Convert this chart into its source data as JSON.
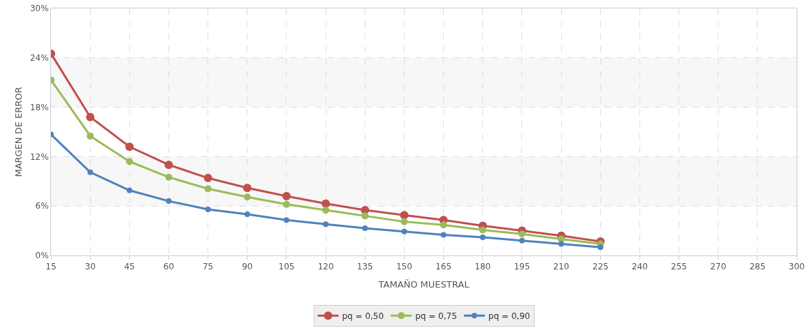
{
  "chart_data": {
    "type": "line",
    "xlabel": "TAMAÑO MUESTRAL",
    "ylabel": "MARGEN DE ERROR",
    "x": [
      15,
      30,
      45,
      60,
      75,
      90,
      105,
      120,
      135,
      150,
      165,
      180,
      195,
      210,
      225
    ],
    "series": [
      {
        "name": "pq = 0,50",
        "color": "#c0504d",
        "values": [
          24.5,
          16.8,
          13.2,
          11.0,
          9.4,
          8.2,
          7.2,
          6.3,
          5.5,
          4.9,
          4.3,
          3.6,
          3.0,
          2.4,
          1.7
        ]
      },
      {
        "name": "pq = 0,75",
        "color": "#9bbb59",
        "values": [
          21.3,
          14.5,
          11.4,
          9.5,
          8.1,
          7.1,
          6.2,
          5.5,
          4.8,
          4.1,
          3.7,
          3.1,
          2.6,
          2.0,
          1.4
        ]
      },
      {
        "name": "pq = 0,90",
        "color": "#4f81bd",
        "values": [
          14.7,
          10.1,
          7.9,
          6.6,
          5.6,
          5.0,
          4.3,
          3.8,
          3.3,
          2.9,
          2.5,
          2.2,
          1.8,
          1.4,
          1.0
        ]
      }
    ],
    "xlim": [
      15,
      300
    ],
    "xticks": [
      15,
      30,
      45,
      60,
      75,
      90,
      105,
      120,
      135,
      150,
      165,
      180,
      195,
      210,
      225,
      240,
      255,
      270,
      285,
      300
    ],
    "ylim": [
      0,
      30
    ],
    "yticks": [
      {
        "value": 0,
        "label": "0%"
      },
      {
        "value": 6,
        "label": "6%"
      },
      {
        "value": 12,
        "label": "12%"
      },
      {
        "value": 18,
        "label": "18%"
      },
      {
        "value": 24,
        "label": "24%"
      },
      {
        "value": 30,
        "label": "30%"
      }
    ],
    "bands": [
      {
        "axis": "y",
        "from": 6,
        "to": 12,
        "color": "#f7f7f7"
      },
      {
        "axis": "y",
        "from": 18,
        "to": 24,
        "color": "#f7f7f7"
      }
    ],
    "grid": true,
    "legend": "bottom",
    "marker": "circle",
    "line_style": "solid"
  }
}
